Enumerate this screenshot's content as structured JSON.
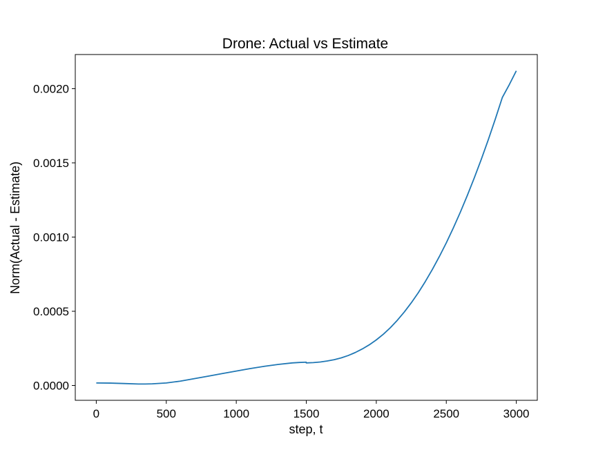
{
  "chart_data": {
    "type": "line",
    "title": "Drone: Actual vs Estimate",
    "xlabel": "step, t",
    "ylabel": "Norm(Actual - Estimate)",
    "xlim": [
      -150,
      3150
    ],
    "ylim": [
      -0.0001,
      0.00223
    ],
    "xticks": [
      0,
      500,
      1000,
      1500,
      2000,
      2500,
      3000
    ],
    "xtick_labels": [
      "0",
      "500",
      "1000",
      "1500",
      "2000",
      "2500",
      "3000"
    ],
    "yticks": [
      0.0,
      0.0005,
      0.001,
      0.0015,
      0.002
    ],
    "ytick_labels": [
      "0.0000",
      "0.0005",
      "0.0010",
      "0.0015",
      "0.0020"
    ],
    "grid": false,
    "series": [
      {
        "color": "#1f77b4",
        "x": [
          0,
          100,
          200,
          300,
          350,
          400,
          500,
          600,
          700,
          800,
          900,
          1000,
          1100,
          1200,
          1300,
          1400,
          1450,
          1499,
          1500,
          1550,
          1600,
          1650,
          1700,
          1750,
          1800,
          1850,
          1900,
          1950,
          2000,
          2050,
          2100,
          2150,
          2200,
          2250,
          2300,
          2350,
          2400,
          2450,
          2500,
          2550,
          2600,
          2650,
          2700,
          2750,
          2800,
          2850,
          2900,
          2950,
          3000
        ],
        "y": [
          1.7e-05,
          1.6e-05,
          1.3e-05,
          1e-05,
          1e-05,
          1.1e-05,
          1.7e-05,
          2.9e-05,
          4.6e-05,
          6.3e-05,
          8e-05,
          9.7e-05,
          0.000114,
          0.000129,
          0.000142,
          0.000152,
          0.000155,
          0.000157,
          0.000152,
          0.000154,
          0.000158,
          0.000165,
          0.000174,
          0.000186,
          0.000202,
          0.000222,
          0.000246,
          0.000274,
          0.000307,
          0.000345,
          0.000389,
          0.000439,
          0.000495,
          0.000557,
          0.000625,
          0.0007,
          0.000781,
          0.000868,
          0.000961,
          0.001061,
          0.001167,
          0.00128,
          0.001399,
          0.001524,
          0.001656,
          0.001795,
          0.00194,
          0.002027,
          0.00212
        ]
      }
    ]
  }
}
